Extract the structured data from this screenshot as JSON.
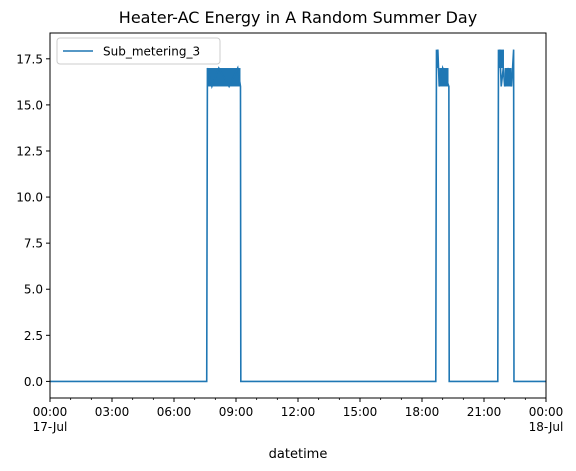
{
  "chart_data": {
    "type": "line",
    "title": "Heater-AC Energy in A Random Summer Day",
    "xlabel": "datetime",
    "ylabel": "",
    "xlim_minutes_labelled": [
      "00:00",
      "00:00"
    ],
    "x_ticks": [
      {
        "label": "00:00",
        "sublabel": "17-Jul",
        "minute": 0
      },
      {
        "label": "03:00",
        "sublabel": "",
        "minute": 180
      },
      {
        "label": "06:00",
        "sublabel": "",
        "minute": 360
      },
      {
        "label": "09:00",
        "sublabel": "",
        "minute": 540
      },
      {
        "label": "12:00",
        "sublabel": "",
        "minute": 720
      },
      {
        "label": "15:00",
        "sublabel": "",
        "minute": 900
      },
      {
        "label": "18:00",
        "sublabel": "",
        "minute": 1080
      },
      {
        "label": "21:00",
        "sublabel": "",
        "minute": 1260
      },
      {
        "label": "00:00",
        "sublabel": "18-Jul",
        "minute": 1440
      }
    ],
    "y_ticks": [
      "0.0",
      "2.5",
      "5.0",
      "7.5",
      "10.0",
      "12.5",
      "15.0",
      "17.5"
    ],
    "ylim": [
      -0.9,
      18.9
    ],
    "xlim": [
      0,
      1440
    ],
    "legend_position": "top-left",
    "series": [
      {
        "name": "Sub_metering_3",
        "color": "#1f77b4",
        "x": [
          0,
          455,
          457,
          470,
          490,
          520,
          545,
          553,
          554,
          600,
          1120,
          1122,
          1124,
          1126,
          1130,
          1140,
          1158,
          1159,
          1300,
          1302,
          1304,
          1306,
          1310,
          1316,
          1320,
          1330,
          1340,
          1346,
          1347,
          1349,
          1350,
          1440
        ],
        "y": [
          0,
          0,
          17,
          16,
          17,
          16,
          17,
          16,
          0,
          0,
          0,
          18,
          17,
          18,
          16,
          17,
          16,
          0,
          0,
          18,
          17,
          18,
          16,
          17,
          16,
          17,
          16,
          18,
          0,
          0,
          0,
          0
        ]
      }
    ],
    "dense_bands": [
      {
        "x_start": 457,
        "x_end": 553,
        "y_low": 16,
        "y_high": 17
      },
      {
        "x_start": 1130,
        "x_end": 1157,
        "y_low": 16,
        "y_high": 17
      },
      {
        "x_start": 1303,
        "x_end": 1318,
        "y_low": 17,
        "y_high": 18
      },
      {
        "x_start": 1320,
        "x_end": 1340,
        "y_low": 16,
        "y_high": 17
      }
    ]
  }
}
